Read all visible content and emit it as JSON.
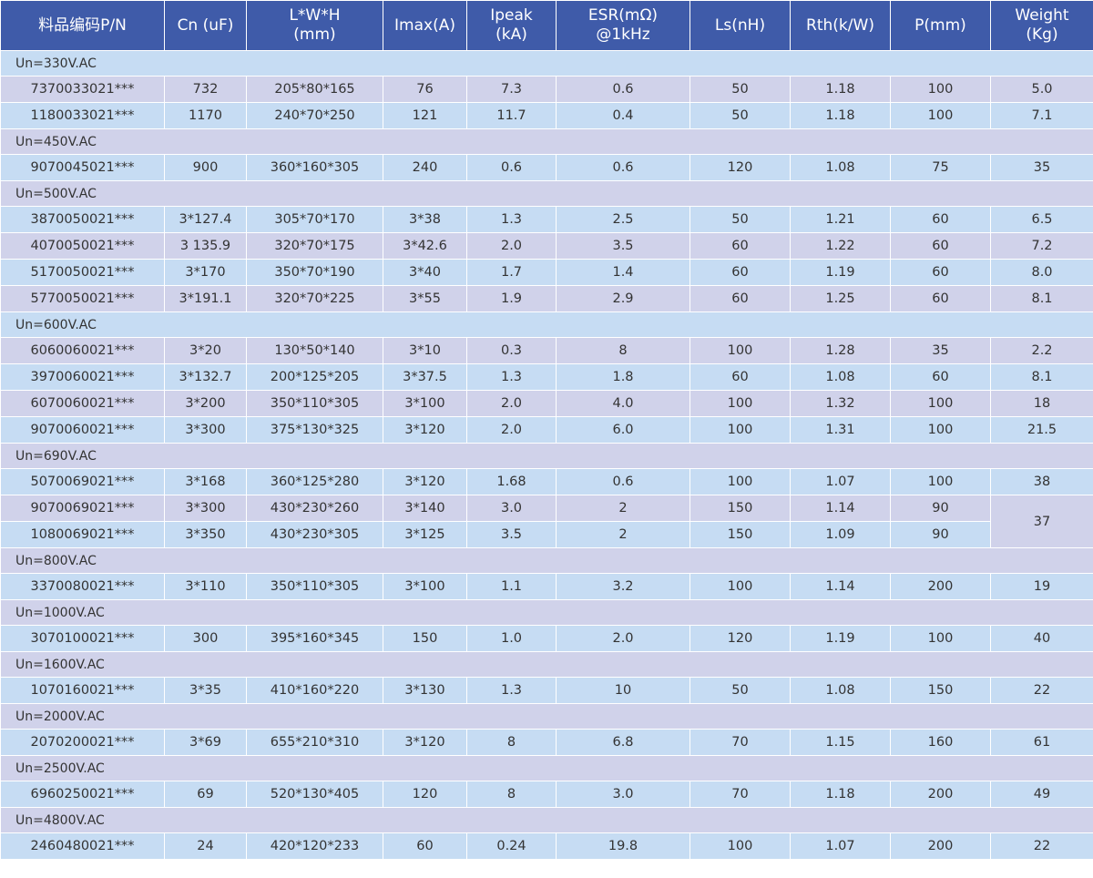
{
  "headers": [
    [
      "料品编码P/N"
    ],
    [
      "Cn (uF)"
    ],
    [
      "L*W*H",
      "(mm)"
    ],
    [
      "Imax(A)"
    ],
    [
      "Ipeak",
      "(kA)"
    ],
    [
      "ESR(mΩ)",
      "@1kHz"
    ],
    [
      "Ls(nH)"
    ],
    [
      "Rth(k/W)"
    ],
    [
      "P(mm)"
    ],
    [
      "Weight",
      "(Kg)"
    ]
  ],
  "groups": [
    {
      "label": "Un=330V.AC",
      "rows": [
        [
          "7370033021***",
          "732",
          "205*80*165",
          "76",
          "7.3",
          "0.6",
          "50",
          "1.18",
          "100",
          "5.0"
        ],
        [
          "1180033021***",
          "1170",
          "240*70*250",
          "121",
          "11.7",
          "0.4",
          "50",
          "1.18",
          "100",
          "7.1"
        ]
      ]
    },
    {
      "label": "Un=450V.AC",
      "rows": [
        [
          "9070045021***",
          "900",
          "360*160*305",
          "240",
          "0.6",
          "0.6",
          "120",
          "1.08",
          "75",
          "35"
        ]
      ]
    },
    {
      "label": "Un=500V.AC",
      "rows": [
        [
          "3870050021***",
          "3*127.4",
          "305*70*170",
          "3*38",
          "1.3",
          "2.5",
          "50",
          "1.21",
          "60",
          "6.5"
        ],
        [
          "4070050021***",
          "3 135.9",
          "320*70*175",
          "3*42.6",
          "2.0",
          "3.5",
          "60",
          "1.22",
          "60",
          "7.2"
        ],
        [
          "5170050021***",
          "3*170",
          "350*70*190",
          "3*40",
          "1.7",
          "1.4",
          "60",
          "1.19",
          "60",
          "8.0"
        ],
        [
          "5770050021***",
          "3*191.1",
          "320*70*225",
          "3*55",
          "1.9",
          "2.9",
          "60",
          "1.25",
          "60",
          "8.1"
        ]
      ]
    },
    {
      "label": "Un=600V.AC",
      "rows": [
        [
          "6060060021***",
          "3*20",
          "130*50*140",
          "3*10",
          "0.3",
          "8",
          "100",
          "1.28",
          "35",
          "2.2"
        ],
        [
          "3970060021***",
          "3*132.7",
          "200*125*205",
          "3*37.5",
          "1.3",
          "1.8",
          "60",
          "1.08",
          "60",
          "8.1"
        ],
        [
          "6070060021***",
          "3*200",
          "350*110*305",
          "3*100",
          "2.0",
          "4.0",
          "100",
          "1.32",
          "100",
          "18"
        ],
        [
          "9070060021***",
          "3*300",
          "375*130*325",
          "3*120",
          "2.0",
          "6.0",
          "100",
          "1.31",
          "100",
          "21.5"
        ]
      ]
    },
    {
      "label": "Un=690V.AC",
      "rows": [
        [
          "5070069021***",
          "3*168",
          "360*125*280",
          "3*120",
          "1.68",
          "0.6",
          "100",
          "1.07",
          "100",
          "38"
        ],
        [
          "9070069021***",
          "3*300",
          "430*230*260",
          "3*140",
          "3.0",
          "2",
          "150",
          "1.14",
          "90",
          "37"
        ],
        [
          "1080069021***",
          "3*350",
          "430*230*305",
          "3*125",
          "3.5",
          "2",
          "150",
          "1.09",
          "90",
          null
        ]
      ]
    },
    {
      "label": "Un=800V.AC",
      "rows": [
        [
          "3370080021***",
          "3*110",
          "350*110*305",
          "3*100",
          "1.1",
          "3.2",
          "100",
          "1.14",
          "200",
          "19"
        ]
      ]
    },
    {
      "label": "Un=1000V.AC",
      "rows": [
        [
          "3070100021***",
          "300",
          "395*160*345",
          "150",
          "1.0",
          "2.0",
          "120",
          "1.19",
          "100",
          "40"
        ]
      ]
    },
    {
      "label": "Un=1600V.AC",
      "rows": [
        [
          "1070160021***",
          "3*35",
          "410*160*220",
          "3*130",
          "1.3",
          "10",
          "50",
          "1.08",
          "150",
          "22"
        ]
      ]
    },
    {
      "label": "Un=2000V.AC",
      "rows": [
        [
          "2070200021***",
          "3*69",
          "655*210*310",
          "3*120",
          "8",
          "6.8",
          "70",
          "1.15",
          "160",
          "61"
        ]
      ]
    },
    {
      "label": "Un=2500V.AC",
      "rows": [
        [
          "6960250021***",
          "69",
          "520*130*405",
          "120",
          "8",
          "3.0",
          "70",
          "1.18",
          "200",
          "49"
        ]
      ]
    },
    {
      "label": "Un=4800V.AC",
      "rows": [
        [
          "2460480021***",
          "24",
          "420*120*233",
          "60",
          "0.24",
          "19.8",
          "100",
          "1.07",
          "200",
          "22"
        ]
      ]
    }
  ],
  "colors": {
    "header_bg": "#3f5ba9",
    "row_blue": "#c6dcf3",
    "row_lavender": "#d0d2ea"
  }
}
